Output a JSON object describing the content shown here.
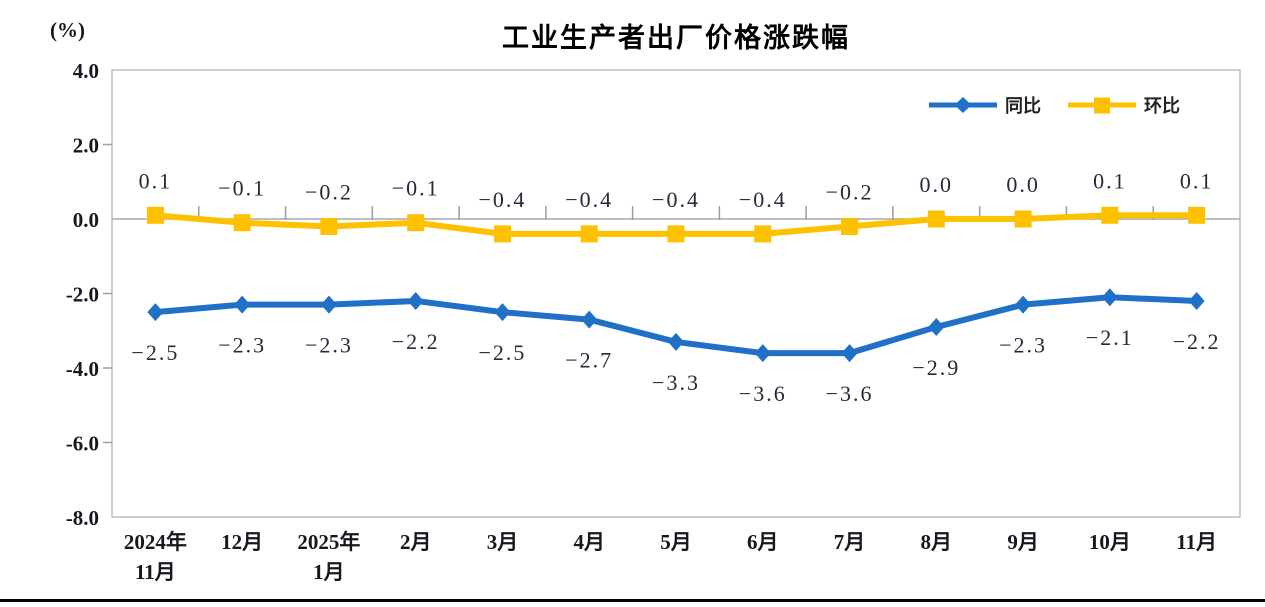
{
  "chart_data": {
    "type": "line",
    "title": "工业生产者出厂价格涨跌幅",
    "ylabel": "(%)",
    "xlabel": "",
    "ylim": [
      -8.0,
      4.0
    ],
    "ytick_step": 2.0,
    "yticks": [
      "4.0",
      "2.0",
      "0.0",
      "-2.0",
      "-4.0",
      "-6.0",
      "-8.0"
    ],
    "grid": false,
    "legend_position": "top-right",
    "categories": [
      "2024年\n11月",
      "12月",
      "2025年\n1月",
      "2月",
      "3月",
      "4月",
      "5月",
      "6月",
      "7月",
      "8月",
      "9月",
      "10月",
      "11月"
    ],
    "series": [
      {
        "id": "yoy",
        "name": "同比",
        "color": "#2070C8",
        "marker": "diamond",
        "label_position": "below",
        "values": [
          -2.5,
          -2.3,
          -2.3,
          -2.2,
          -2.5,
          -2.7,
          -3.3,
          -3.6,
          -3.6,
          -2.9,
          -2.3,
          -2.1,
          -2.2
        ]
      },
      {
        "id": "mom",
        "name": "环比",
        "color": "#FEC100",
        "marker": "square",
        "label_position": "above",
        "values": [
          0.1,
          -0.1,
          -0.2,
          -0.1,
          -0.4,
          -0.4,
          -0.4,
          -0.4,
          -0.2,
          0.0,
          0.0,
          0.1,
          0.1
        ]
      }
    ]
  },
  "footer": {
    "divider_color": "#000000"
  }
}
